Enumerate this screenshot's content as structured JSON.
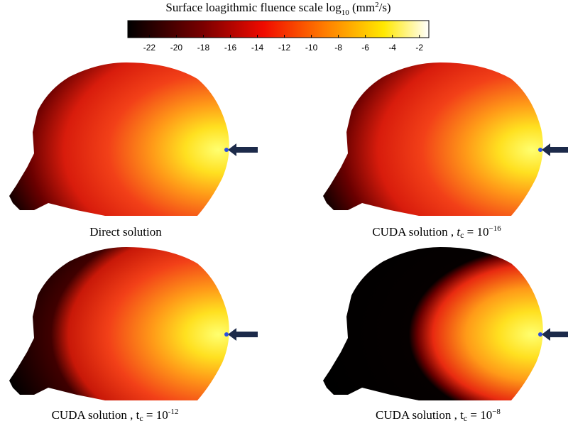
{
  "colorbar": {
    "title": [
      "Surface loagithmic fluence scale log",
      "10",
      " (mm",
      "2",
      "/s)"
    ],
    "range": [
      -23.6,
      -1.3
    ],
    "ticks": [
      -22,
      -20,
      -18,
      -16,
      -14,
      -12,
      -10,
      -8,
      -6,
      -4,
      -2
    ]
  },
  "panels": [
    {
      "caption": [
        "Direct solution"
      ]
    },
    {
      "caption": [
        "CUDA solution , ",
        "t",
        "c",
        " = 10",
        "−16"
      ]
    },
    {
      "caption": [
        "CUDA solution , t",
        "c",
        " = 10",
        "-12"
      ]
    },
    {
      "caption": [
        "CUDA solution , t",
        "c",
        " = 10",
        "−8"
      ]
    }
  ]
}
